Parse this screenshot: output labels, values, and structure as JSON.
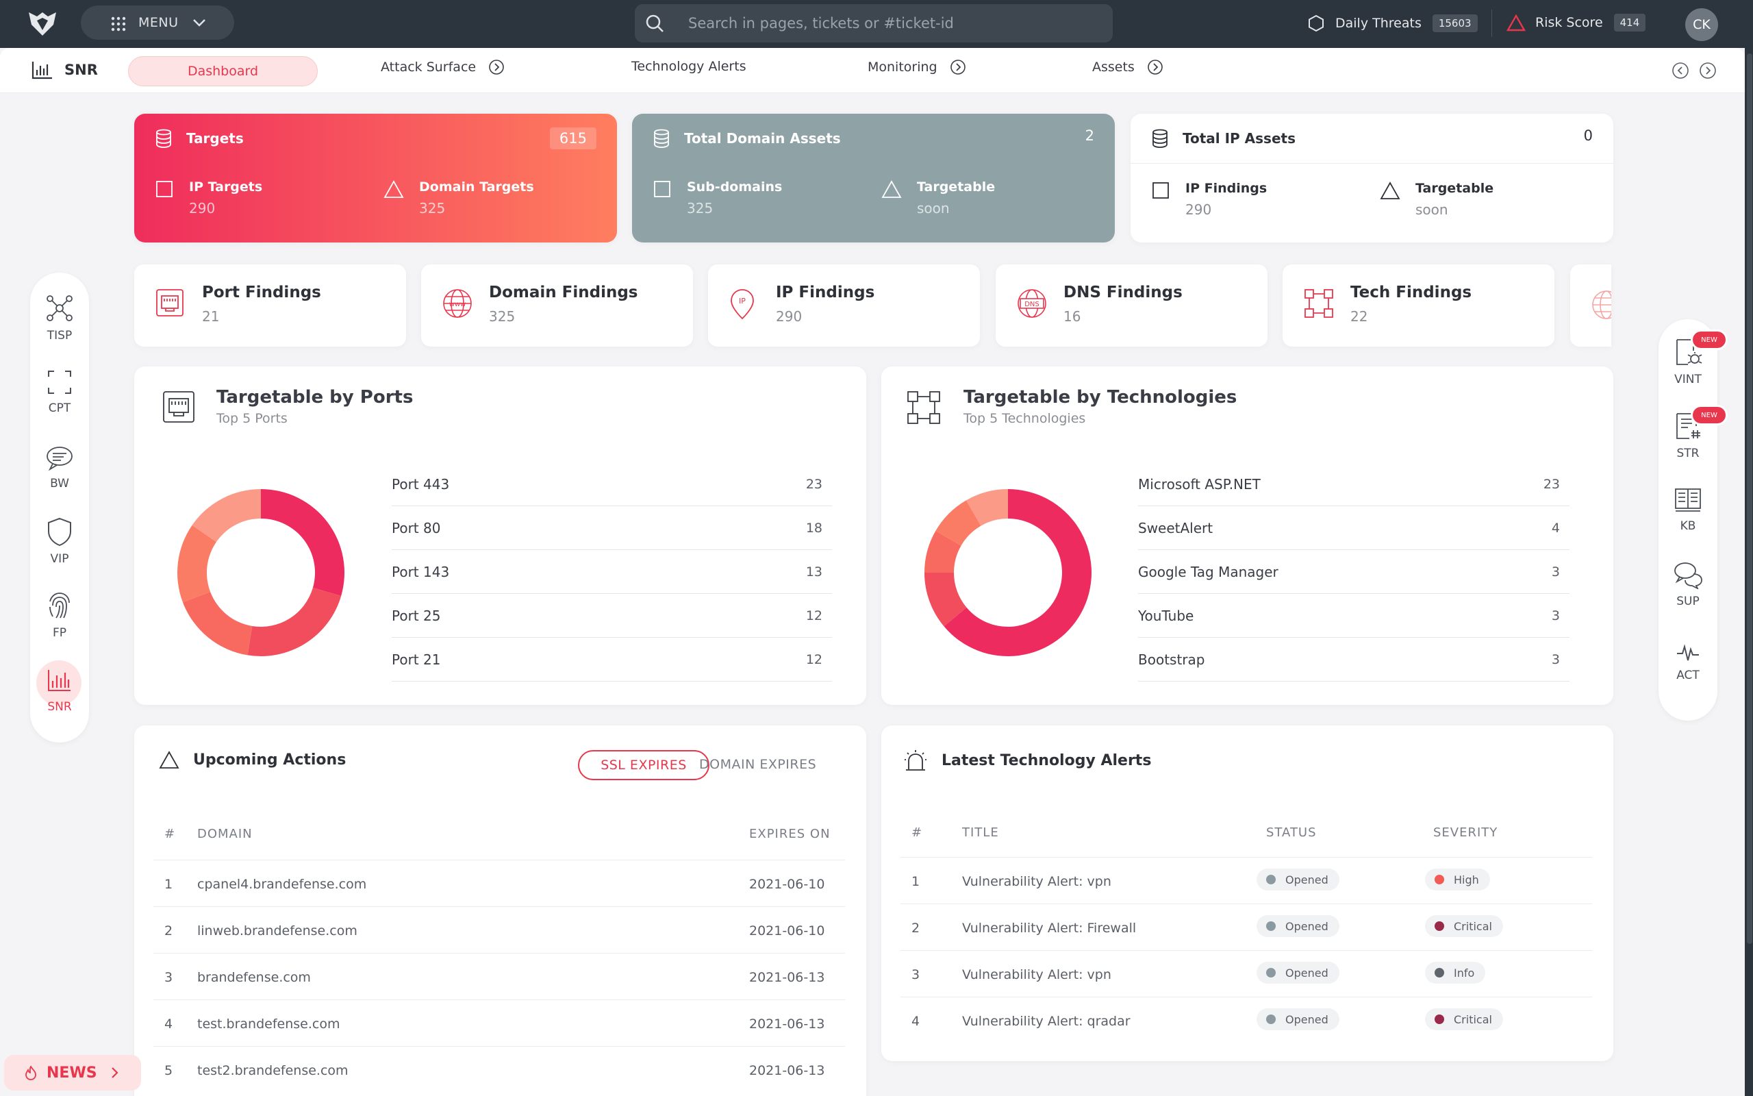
{
  "topbar": {
    "menu_label": "MENU",
    "search_placeholder": "Search in pages, tickets or #ticket-id",
    "daily_threats_label": "Daily Threats",
    "daily_threats_count": "15603",
    "risk_score_label": "Risk Score",
    "risk_score_value": "414",
    "avatar_initials": "CK"
  },
  "subnav": {
    "brand": "SNR",
    "tabs": [
      "Dashboard",
      "Attack Surface",
      "Technology Alerts",
      "Monitoring",
      "Assets"
    ]
  },
  "left_dock": [
    "TISP",
    "CPT",
    "BW",
    "VIP",
    "FP",
    "SNR"
  ],
  "right_dock": [
    {
      "label": "VINT",
      "badge": "NEW"
    },
    {
      "label": "STR",
      "badge": "NEW"
    },
    {
      "label": "KB",
      "badge": ""
    },
    {
      "label": "SUP",
      "badge": ""
    },
    {
      "label": "ACT",
      "badge": ""
    }
  ],
  "summary_cards": [
    {
      "title": "Targets",
      "count": "615",
      "left_label": "IP Targets",
      "left_value": "290",
      "right_label": "Domain Targets",
      "right_value": "325"
    },
    {
      "title": "Total Domain Assets",
      "count": "2",
      "left_label": "Sub-domains",
      "left_value": "325",
      "right_label": "Targetable",
      "right_value": "soon"
    },
    {
      "title": "Total IP Assets",
      "count": "0",
      "left_label": "IP Findings",
      "left_value": "290",
      "right_label": "Targetable",
      "right_value": "soon"
    }
  ],
  "findings": [
    {
      "title": "Port Findings",
      "value": "21",
      "icon": "port-icon"
    },
    {
      "title": "Domain Findings",
      "value": "325",
      "icon": "globe-icon"
    },
    {
      "title": "IP Findings",
      "value": "290",
      "icon": "location-pin-icon"
    },
    {
      "title": "DNS Findings",
      "value": "16",
      "icon": "dns-globe-icon"
    },
    {
      "title": "Tech Findings",
      "value": "22",
      "icon": "tech-nodes-icon"
    }
  ],
  "ports_panel": {
    "title": "Targetable by Ports",
    "subtitle": "Top 5 Ports",
    "chart_data": {
      "type": "pie",
      "categories": [
        "Port 443",
        "Port 80",
        "Port 143",
        "Port 25",
        "Port 21"
      ],
      "values": [
        23,
        18,
        13,
        12,
        12
      ],
      "colors": [
        "#ed2b5f",
        "#f14d5c",
        "#f86a5f",
        "#fb7c65",
        "#fb9a87"
      ]
    }
  },
  "tech_panel": {
    "title": "Targetable by Technologies",
    "subtitle": "Top 5 Technologies",
    "chart_data": {
      "type": "pie",
      "categories": [
        "Microsoft ASP.NET",
        "SweetAlert",
        "Google Tag Manager",
        "YouTube",
        "Bootstrap"
      ],
      "values": [
        23,
        4,
        3,
        3,
        3
      ],
      "colors": [
        "#ed2b5f",
        "#f14d5c",
        "#f86a5f",
        "#fb7c65",
        "#fb9a87"
      ]
    }
  },
  "upcoming": {
    "title": "Upcoming Actions",
    "tab_active": "SSL EXPIRES",
    "tab_inactive": "DOMAIN EXPIRES",
    "col_num": "#",
    "col_domain": "DOMAIN",
    "col_expires": "EXPIRES ON",
    "rows": [
      {
        "n": "1",
        "domain": "cpanel4.brandefense.com",
        "date": "2021-06-10"
      },
      {
        "n": "2",
        "domain": "linweb.brandefense.com",
        "date": "2021-06-10"
      },
      {
        "n": "3",
        "domain": "brandefense.com",
        "date": "2021-06-13"
      },
      {
        "n": "4",
        "domain": "test.brandefense.com",
        "date": "2021-06-13"
      },
      {
        "n": "5",
        "domain": "test2.brandefense.com",
        "date": "2021-06-13"
      }
    ]
  },
  "alerts": {
    "title": "Latest Technology Alerts",
    "col_num": "#",
    "col_title": "TITLE",
    "col_status": "STATUS",
    "col_severity": "SEVERITY",
    "rows": [
      {
        "n": "1",
        "title": "Vulnerability Alert: vpn",
        "status": "Opened",
        "severity": "High",
        "sev_color": "#f25a55"
      },
      {
        "n": "2",
        "title": "Vulnerability Alert: Firewall",
        "status": "Opened",
        "severity": "Critical",
        "sev_color": "#9b2a4a"
      },
      {
        "n": "3",
        "title": "Vulnerability Alert: vpn",
        "status": "Opened",
        "severity": "Info",
        "sev_color": "#5f656d"
      },
      {
        "n": "4",
        "title": "Vulnerability Alert: qradar",
        "status": "Opened",
        "severity": "Critical",
        "sev_color": "#9b2a4a"
      }
    ],
    "status_color": "#8a9aa0"
  },
  "news_label": "NEWS"
}
